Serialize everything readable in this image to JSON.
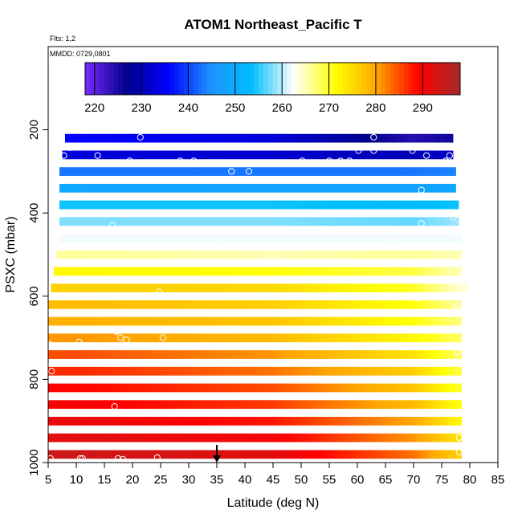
{
  "chart_data": {
    "type": "heatmap",
    "title": "ATOM1 Northeast_Pacific T",
    "annotations": [
      "Flts: 1,2",
      "MMDD: 0729,0801"
    ],
    "xlabel": "Latitude (deg N)",
    "ylabel": "PSXC (mbar)",
    "xlim": [
      5,
      85
    ],
    "ylim": [
      1000,
      0
    ],
    "x_ticks": [
      5,
      10,
      15,
      20,
      25,
      30,
      35,
      40,
      45,
      50,
      55,
      60,
      65,
      70,
      75,
      80,
      85
    ],
    "y_ticks": [
      200,
      400,
      600,
      800,
      1000
    ],
    "colorbar": {
      "range": [
        218,
        298
      ],
      "ticks": [
        220,
        230,
        240,
        250,
        260,
        270,
        280,
        290
      ],
      "colors": [
        "#7a2bff",
        "#00008b",
        "#0000ff",
        "#1e90ff",
        "#00bfff",
        "#ffffff",
        "#ffff00",
        "#ffa500",
        "#ff0000",
        "#a52a2a"
      ]
    },
    "temperature_profile": {
      "pressure_mbar": [
        220,
        260,
        300,
        340,
        380,
        420,
        460,
        500,
        540,
        580,
        620,
        660,
        700,
        740,
        780,
        820,
        860,
        900,
        940,
        980
      ],
      "temp_at_lat": {
        "lat_10": [
          236,
          233,
          243,
          249,
          254,
          258,
          262,
          266,
          272,
          276,
          278,
          279,
          281,
          285,
          287,
          289,
          290,
          291,
          292,
          294
        ],
        "lat_45": [
          233,
          232,
          243,
          248,
          254,
          258,
          262,
          265,
          271,
          275,
          276,
          277,
          278,
          281,
          283,
          285,
          286,
          288,
          290,
          292
        ],
        "lat_70": [
          224,
          230,
          243,
          248,
          253,
          257,
          262,
          266,
          269,
          270,
          271,
          271,
          272,
          274,
          276,
          277,
          278,
          280,
          281,
          283
        ],
        "lat_78": [
          226,
          232,
          244,
          249,
          254,
          259,
          262,
          265,
          265,
          264,
          266,
          267,
          268,
          268,
          269,
          270,
          271,
          272,
          274,
          276
        ]
      }
    },
    "region_lat_extent": {
      "pressure_mbar": [
        220,
        260,
        300,
        340,
        380,
        420,
        460,
        500,
        540,
        580,
        620,
        660,
        700,
        740,
        780,
        820,
        860,
        900,
        940,
        980
      ],
      "lat_min": [
        8,
        7.5,
        7,
        7,
        7,
        7,
        7,
        6.5,
        6,
        5.5,
        5,
        5,
        5,
        5,
        5,
        5,
        5,
        5,
        5,
        5
      ],
      "lat_max": [
        77,
        77,
        77.5,
        77.5,
        78,
        78,
        78.5,
        78.5,
        78.5,
        79.5,
        78.5,
        78.5,
        78.5,
        78.5,
        78.5,
        78.5,
        78.5,
        78.5,
        78.5,
        78.5
      ]
    },
    "observation_points": [
      {
        "lat": 8.8,
        "p": 243
      },
      {
        "lat": 14.7,
        "p": 240
      },
      {
        "lat": 13.8,
        "p": 262
      },
      {
        "lat": 7.8,
        "p": 262
      },
      {
        "lat": 21.4,
        "p": 218
      },
      {
        "lat": 19.5,
        "p": 275
      },
      {
        "lat": 15.6,
        "p": 320
      },
      {
        "lat": 28.5,
        "p": 275
      },
      {
        "lat": 30.9,
        "p": 275
      },
      {
        "lat": 37.6,
        "p": 300
      },
      {
        "lat": 40.7,
        "p": 300
      },
      {
        "lat": 50.2,
        "p": 275
      },
      {
        "lat": 55,
        "p": 275
      },
      {
        "lat": 57,
        "p": 275
      },
      {
        "lat": 58.6,
        "p": 275
      },
      {
        "lat": 60.2,
        "p": 250
      },
      {
        "lat": 62.9,
        "p": 218
      },
      {
        "lat": 62.9,
        "p": 250
      },
      {
        "lat": 69.8,
        "p": 250
      },
      {
        "lat": 72.3,
        "p": 262
      },
      {
        "lat": 75.7,
        "p": 275
      },
      {
        "lat": 76.4,
        "p": 262
      },
      {
        "lat": 71.4,
        "p": 345
      },
      {
        "lat": 68.8,
        "p": 360
      },
      {
        "lat": 77.1,
        "p": 410
      },
      {
        "lat": 71.4,
        "p": 425
      },
      {
        "lat": 77.1,
        "p": 455
      },
      {
        "lat": 66.1,
        "p": 465
      },
      {
        "lat": 16.4,
        "p": 430
      },
      {
        "lat": 9.6,
        "p": 480
      },
      {
        "lat": 12.9,
        "p": 480
      },
      {
        "lat": 19.5,
        "p": 480
      },
      {
        "lat": 35.1,
        "p": 475
      },
      {
        "lat": 79.5,
        "p": 580
      },
      {
        "lat": 70.6,
        "p": 605
      },
      {
        "lat": 24.8,
        "p": 590
      },
      {
        "lat": 35.1,
        "p": 600
      },
      {
        "lat": 77.7,
        "p": 625
      },
      {
        "lat": 11.3,
        "p": 680
      },
      {
        "lat": 17.2,
        "p": 685
      },
      {
        "lat": 10.5,
        "p": 710
      },
      {
        "lat": 17.9,
        "p": 700
      },
      {
        "lat": 18.9,
        "p": 705
      },
      {
        "lat": 25.4,
        "p": 700
      },
      {
        "lat": 77.7,
        "p": 735
      },
      {
        "lat": 5.6,
        "p": 780
      },
      {
        "lat": 5.1,
        "p": 715
      },
      {
        "lat": 16.8,
        "p": 865
      },
      {
        "lat": 77.7,
        "p": 880
      },
      {
        "lat": 25.7,
        "p": 920
      },
      {
        "lat": 78.1,
        "p": 940
      },
      {
        "lat": 77.7,
        "p": 960
      },
      {
        "lat": 78.1,
        "p": 975
      },
      {
        "lat": 5.4,
        "p": 990
      },
      {
        "lat": 10.7,
        "p": 990
      },
      {
        "lat": 11.1,
        "p": 990
      },
      {
        "lat": 17.4,
        "p": 990
      },
      {
        "lat": 18.3,
        "p": 992
      },
      {
        "lat": 24.4,
        "p": 988
      }
    ],
    "arrow_marker_lat": 35
  }
}
